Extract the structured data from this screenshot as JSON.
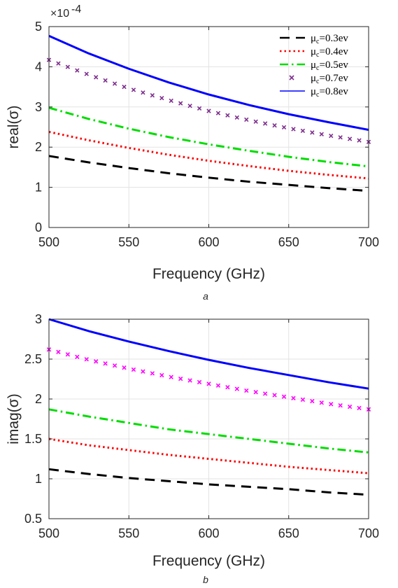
{
  "chart_data": [
    {
      "type": "line",
      "caption": "a",
      "ylabel": "real(σ)",
      "xlabel": "Frequency (GHz)",
      "exponent_label": "×10",
      "exponent_power": "-4",
      "xlim": [
        500,
        700
      ],
      "ylim": [
        0,
        5
      ],
      "xticks": [
        500,
        550,
        600,
        650,
        700
      ],
      "yticks": [
        0,
        1,
        2,
        3,
        4,
        5
      ],
      "grid": true,
      "legend_position": "top-right",
      "x": [
        500,
        525,
        550,
        575,
        600,
        625,
        650,
        675,
        700
      ],
      "series": [
        {
          "name": "μc=0.3ev",
          "legend_main": "μ",
          "legend_sub": "c",
          "legend_rest": "=0.3ev",
          "color": "#000000",
          "style": "dashed",
          "values": [
            1.78,
            1.62,
            1.48,
            1.35,
            1.24,
            1.14,
            1.06,
            0.98,
            0.91
          ]
        },
        {
          "name": "μc=0.4ev",
          "legend_main": "μ",
          "legend_sub": "c",
          "legend_rest": "=0.4ev",
          "color": "#ff0000",
          "style": "dotted",
          "values": [
            2.38,
            2.17,
            1.98,
            1.81,
            1.66,
            1.53,
            1.41,
            1.31,
            1.22
          ]
        },
        {
          "name": "μc=0.5ev",
          "legend_main": "μ",
          "legend_sub": "c",
          "legend_rest": "=0.5ev",
          "color": "#00dd00",
          "style": "dashdot",
          "values": [
            2.98,
            2.7,
            2.46,
            2.25,
            2.07,
            1.91,
            1.76,
            1.63,
            1.52
          ]
        },
        {
          "name": "μc=0.7ev",
          "legend_main": "μ",
          "legend_sub": "c",
          "legend_rest": "=0.7ev",
          "color": "#7e2f8e",
          "style": "x-markers",
          "values": [
            4.17,
            3.8,
            3.46,
            3.17,
            2.9,
            2.67,
            2.47,
            2.29,
            2.13
          ]
        },
        {
          "name": "μc=0.8ev",
          "legend_main": "μ",
          "legend_sub": "c",
          "legend_rest": "=0.8ev",
          "color": "#0000ff",
          "style": "solid",
          "values": [
            4.77,
            4.33,
            3.95,
            3.61,
            3.31,
            3.05,
            2.82,
            2.62,
            2.43
          ]
        }
      ]
    },
    {
      "type": "line",
      "caption": "b",
      "ylabel": "imag(σ)",
      "xlabel": "Frequency (GHz)",
      "xlim": [
        500,
        700
      ],
      "ylim": [
        0.5,
        3
      ],
      "xticks": [
        500,
        550,
        600,
        650,
        700
      ],
      "yticks": [
        0.5,
        1,
        1.5,
        2,
        2.5,
        3
      ],
      "grid": true,
      "x": [
        500,
        525,
        550,
        575,
        600,
        625,
        650,
        675,
        700
      ],
      "series": [
        {
          "color": "#000000",
          "style": "dashed",
          "values": [
            1.12,
            1.06,
            1.01,
            0.97,
            0.93,
            0.9,
            0.87,
            0.83,
            0.8
          ]
        },
        {
          "color": "#ff0000",
          "style": "dotted",
          "values": [
            1.5,
            1.42,
            1.36,
            1.3,
            1.25,
            1.2,
            1.15,
            1.11,
            1.07
          ]
        },
        {
          "color": "#00dd00",
          "style": "dashdot",
          "values": [
            1.87,
            1.78,
            1.7,
            1.62,
            1.56,
            1.5,
            1.44,
            1.38,
            1.33
          ]
        },
        {
          "color": "#ff00ff",
          "style": "x-markers",
          "values": [
            2.62,
            2.49,
            2.38,
            2.28,
            2.19,
            2.1,
            2.02,
            1.94,
            1.87
          ]
        },
        {
          "color": "#0000ff",
          "style": "solid",
          "values": [
            3.0,
            2.85,
            2.72,
            2.6,
            2.49,
            2.39,
            2.3,
            2.21,
            2.13
          ]
        }
      ]
    }
  ]
}
